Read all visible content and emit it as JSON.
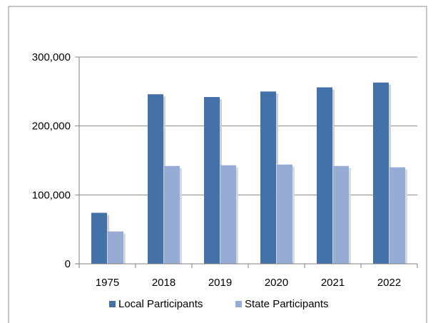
{
  "chart_data": {
    "type": "bar",
    "title": "",
    "xlabel": "",
    "ylabel": "",
    "categories": [
      "1975",
      "2018",
      "2019",
      "2020",
      "2021",
      "2022"
    ],
    "series": [
      {
        "name": "Local Participants",
        "color": "#4472a8",
        "shadow": "#c9cbcf",
        "values": [
          74000,
          246000,
          242000,
          250000,
          256000,
          263000
        ]
      },
      {
        "name": "State Participants",
        "color": "#97acd4",
        "shadow": "#d3d6db",
        "values": [
          47000,
          142000,
          143000,
          144000,
          142000,
          140000
        ]
      }
    ],
    "ylim": [
      0,
      300000
    ],
    "yticks": [
      0,
      100000,
      200000,
      300000
    ],
    "ytick_labels": [
      "0",
      "100,000",
      "200,000",
      "300,000"
    ],
    "grid": true,
    "legend_position": "bottom"
  },
  "colors": {
    "border": "#8c8c8c",
    "axis": "#7f7f7f",
    "grid": "#8a8a8a"
  }
}
